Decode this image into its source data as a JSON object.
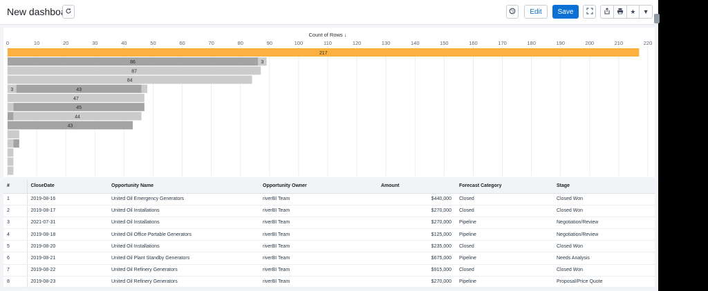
{
  "header": {
    "title": "New dashboard",
    "refresh_icon": "refresh-icon",
    "settings_icon": "palette-icon",
    "edit_label": "Edit",
    "save_label": "Save",
    "fullscreen_icon": "expand-icon",
    "share_icon": "share-icon",
    "print_icon": "print-icon",
    "favorite_icon": "star-icon",
    "more_icon": "caret-down-icon"
  },
  "colors": {
    "highlight_bar": "#fbb040",
    "dark_bar": "#a3a3a3",
    "light_bar": "#cbcbcb",
    "save_button": "#0b70d6"
  },
  "chart_data": {
    "type": "bar",
    "orientation": "horizontal",
    "stacked": true,
    "title": "Count of Rows ↓",
    "xlim": [
      0,
      220
    ],
    "xticks": [
      0,
      10,
      20,
      30,
      40,
      50,
      60,
      70,
      80,
      90,
      100,
      110,
      120,
      130,
      140,
      150,
      160,
      170,
      180,
      190,
      200,
      210,
      220
    ],
    "grid": true,
    "rows": [
      {
        "segments": [
          {
            "value": 217,
            "label": "217",
            "style": "highlight"
          }
        ]
      },
      {
        "segments": [
          {
            "value": 86,
            "label": "86",
            "style": "dark"
          },
          {
            "value": 3,
            "label": "3",
            "style": "light"
          }
        ]
      },
      {
        "segments": [
          {
            "value": 87,
            "label": "87",
            "style": "light"
          }
        ]
      },
      {
        "segments": [
          {
            "value": 84,
            "label": "84",
            "style": "light"
          }
        ]
      },
      {
        "segments": [
          {
            "value": 3,
            "label": "3",
            "style": "light"
          },
          {
            "value": 43,
            "label": "43",
            "style": "dark"
          },
          {
            "value": 2,
            "label": "",
            "style": "light"
          }
        ]
      },
      {
        "segments": [
          {
            "value": 47,
            "label": "47",
            "style": "light"
          }
        ]
      },
      {
        "segments": [
          {
            "value": 2,
            "label": "",
            "style": "light"
          },
          {
            "value": 45,
            "label": "45",
            "style": "dark"
          }
        ]
      },
      {
        "segments": [
          {
            "value": 2,
            "label": "",
            "style": "dark"
          },
          {
            "value": 44,
            "label": "44",
            "style": "light"
          }
        ]
      },
      {
        "segments": [
          {
            "value": 43,
            "label": "43",
            "style": "dark"
          }
        ]
      },
      {
        "segments": [
          {
            "value": 4,
            "label": "",
            "style": "light"
          }
        ]
      },
      {
        "segments": [
          {
            "value": 2,
            "label": "",
            "style": "light"
          },
          {
            "value": 2,
            "label": "",
            "style": "dark"
          }
        ]
      },
      {
        "segments": [
          {
            "value": 2,
            "label": "",
            "style": "light"
          }
        ]
      },
      {
        "segments": [
          {
            "value": 2,
            "label": "",
            "style": "light"
          }
        ]
      },
      {
        "segments": [
          {
            "value": 2,
            "label": "",
            "style": "light"
          }
        ]
      }
    ]
  },
  "table": {
    "columns": [
      "#",
      "CloseDate",
      "Opportunity Name",
      "Opportunity Owner",
      "Amount",
      "Forecast Category",
      "Stage"
    ],
    "rows": [
      [
        "1",
        "2019-08-16",
        "United Oil Emergency Generators",
        "riverBI Team",
        "$440,000",
        "Closed",
        "Closed Won"
      ],
      [
        "2",
        "2019-08-17",
        "United Oil Installations",
        "riverBI Team",
        "$270,000",
        "Closed",
        "Closed Won"
      ],
      [
        "3",
        "2021-07-31",
        "United Oil Installations",
        "riverBI Team",
        "$270,000",
        "Pipeline",
        "Negotiation/Review"
      ],
      [
        "4",
        "2019-08-18",
        "United Oil Office Portable Generators",
        "riverBI Team",
        "$125,000",
        "Pipeline",
        "Negotiation/Review"
      ],
      [
        "5",
        "2019-08-20",
        "United Oil Installations",
        "riverBI Team",
        "$235,000",
        "Closed",
        "Closed Won"
      ],
      [
        "6",
        "2019-08-21",
        "United Oil Plant Standby Generators",
        "riverBI Team",
        "$675,000",
        "Pipeline",
        "Needs Analysis"
      ],
      [
        "7",
        "2019-08-22",
        "United Oil Refinery Generators",
        "riverBI Team",
        "$915,000",
        "Closed",
        "Closed Won"
      ],
      [
        "8",
        "2019-08-23",
        "United Oil Refinery Generators",
        "riverBI Team",
        "$270,000",
        "Pipeline",
        "Proposal/Price Quote"
      ]
    ]
  }
}
